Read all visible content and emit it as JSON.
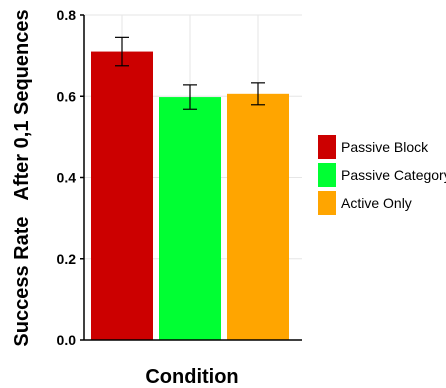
{
  "chart_data": {
    "type": "bar",
    "xlabel": "Condition",
    "ylabel": "Success Rate   After 0,1 Sequences",
    "ylim": [
      0,
      0.8
    ],
    "yticks": [
      "0.0",
      "0.2",
      "0.4",
      "0.6",
      "0.8"
    ],
    "grid": true,
    "legend_position": "right",
    "series": [
      {
        "name": "Passive Block",
        "value": 0.71,
        "error_low": 0.675,
        "error_high": 0.745,
        "color": "#cc0000"
      },
      {
        "name": "Passive Category",
        "value": 0.598,
        "error_low": 0.568,
        "error_high": 0.628,
        "color": "#00ff33"
      },
      {
        "name": "Active Only",
        "value": 0.606,
        "error_low": 0.579,
        "error_high": 0.633,
        "color": "#ffa500"
      }
    ]
  }
}
